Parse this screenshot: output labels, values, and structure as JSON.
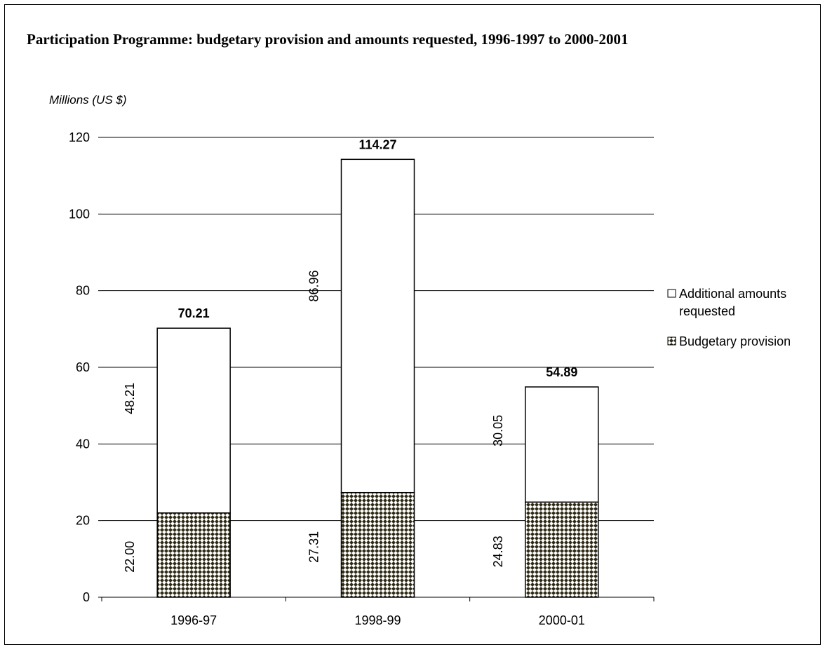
{
  "chart_data": {
    "type": "bar",
    "stacked": true,
    "title": "Participation Programme: budgetary provision and amounts requested, 1996-1997 to 2000-2001",
    "ylabel": "Millions (US $)",
    "xlabel": "",
    "categories": [
      "1996-97",
      "1998-99",
      "2000-01"
    ],
    "ylim": [
      0,
      120
    ],
    "yticks": [
      0,
      20,
      40,
      60,
      80,
      100,
      120
    ],
    "ytick_labels": [
      "0",
      "20",
      "40",
      "60",
      "80",
      "100",
      "120"
    ],
    "grid": true,
    "legend_position": "right",
    "series": [
      {
        "name": "Budgetary provision",
        "values": [
          22.0,
          27.31,
          24.83
        ],
        "labels": [
          "22.00",
          "27.31",
          "24.83"
        ],
        "pattern": "checkered",
        "color": "#2e2a14"
      },
      {
        "name": "Additional amounts requested",
        "values": [
          48.21,
          86.96,
          30.05
        ],
        "labels": [
          "48.21",
          "86.96",
          "30.05"
        ],
        "pattern": "none",
        "color": "#ffffff"
      }
    ],
    "totals": [
      70.21,
      114.27,
      54.89
    ],
    "total_labels": [
      "70.21",
      "114.27",
      "54.89"
    ],
    "legend": [
      {
        "lines": [
          "Additional amounts",
          "requested"
        ],
        "series": "Additional amounts requested"
      },
      {
        "lines": [
          "Budgetary provision"
        ],
        "series": "Budgetary provision"
      }
    ]
  }
}
